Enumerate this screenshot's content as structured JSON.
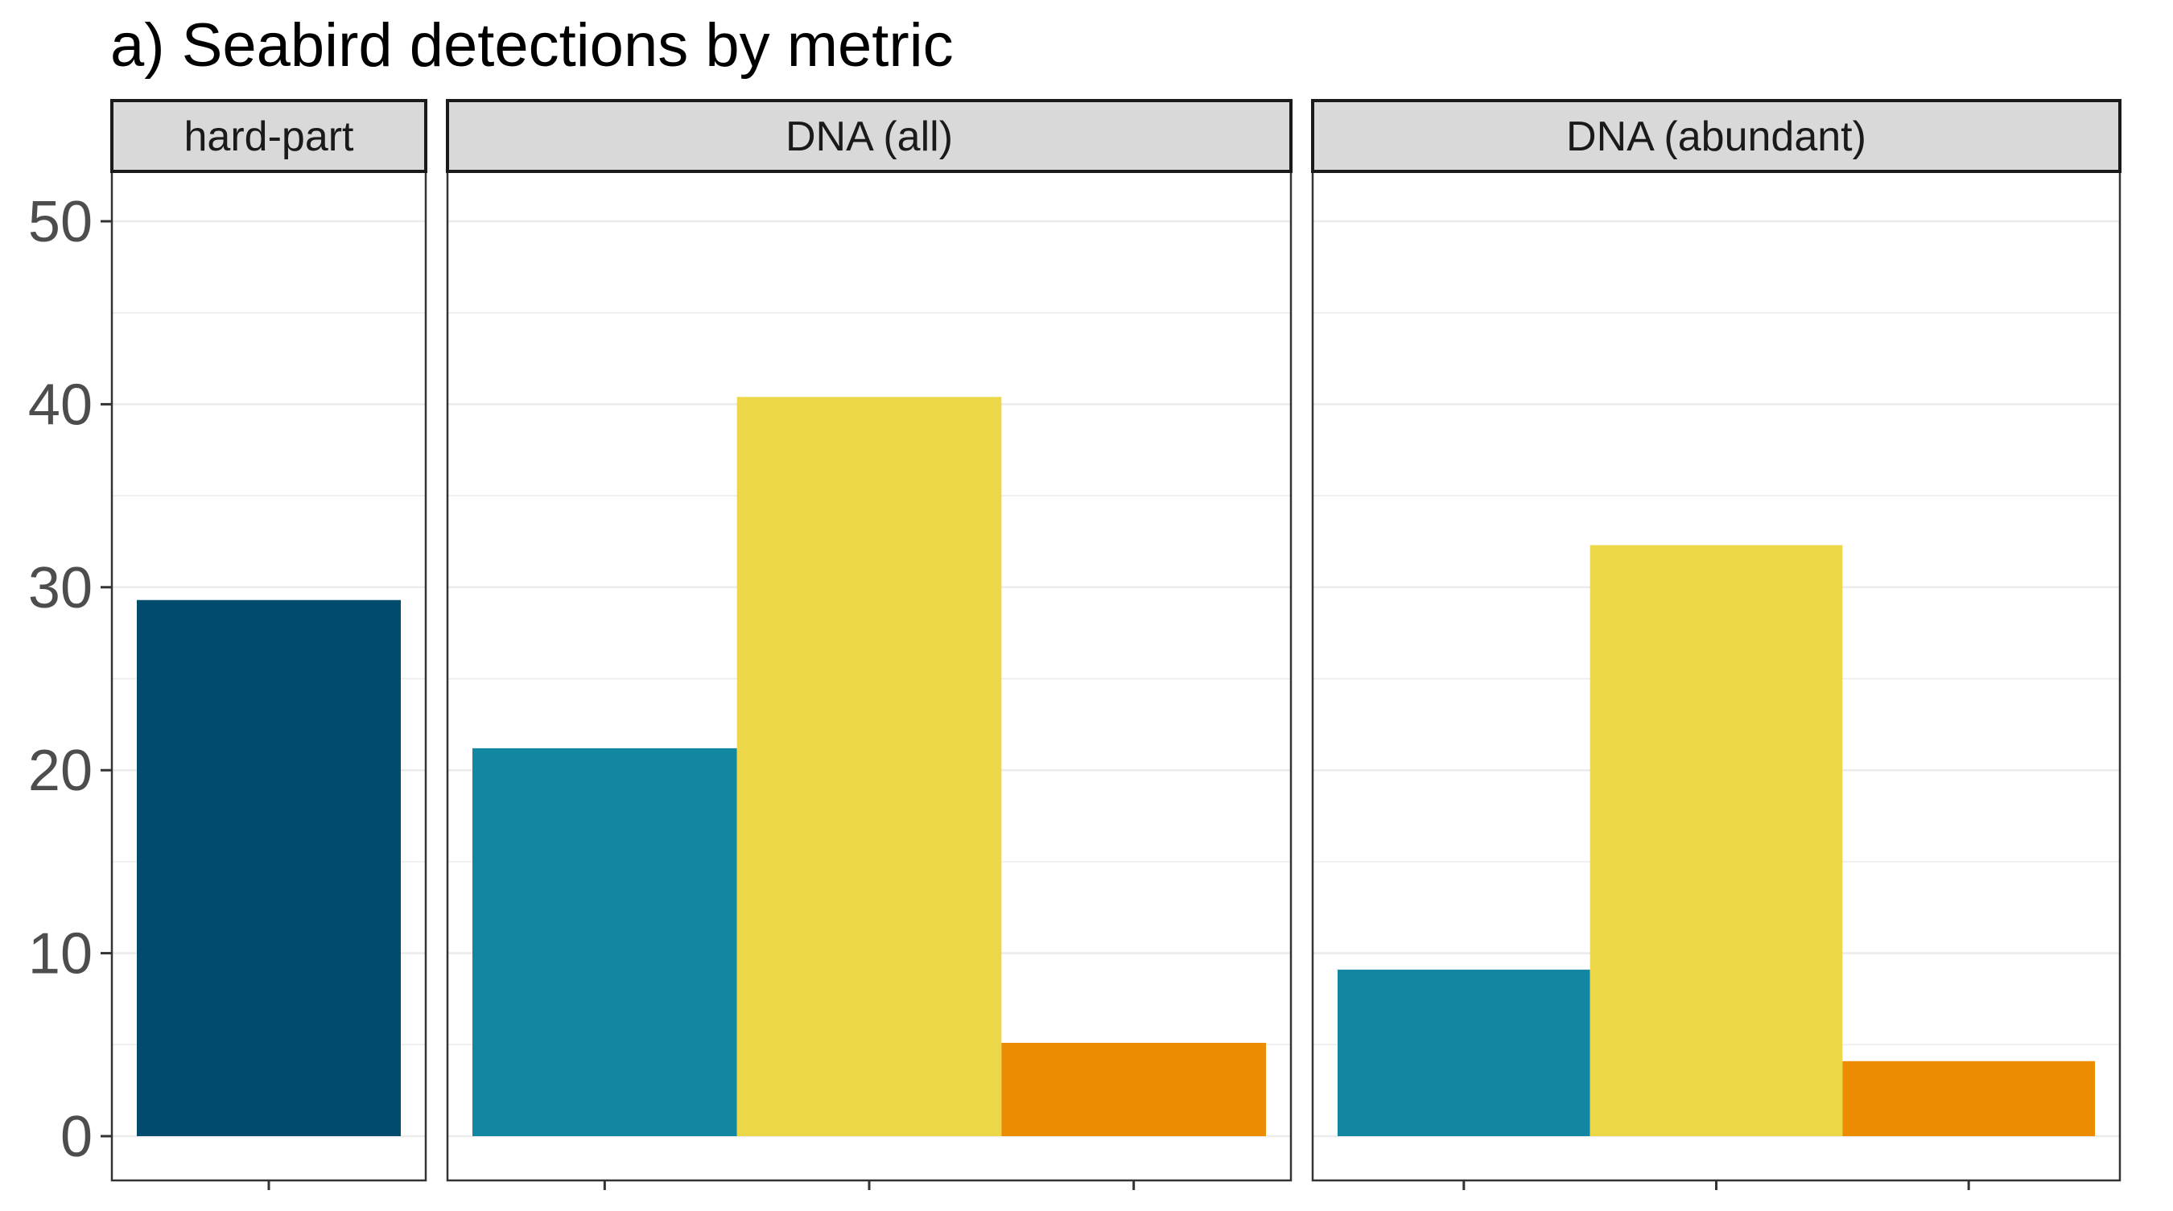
{
  "chart_data": {
    "type": "bar",
    "title": "a) Seabird detections by metric",
    "xlabel": "",
    "ylabel": "",
    "ylim": [
      0,
      52
    ],
    "yticks": [
      0,
      10,
      20,
      30,
      40,
      50
    ],
    "grid": true,
    "legend": "none",
    "panels": [
      {
        "label": "hard-part",
        "bars": [
          {
            "value": 29.3,
            "color": "#004B6E"
          }
        ]
      },
      {
        "label": "DNA (all)",
        "bars": [
          {
            "value": 21.2,
            "color": "#1187A1"
          },
          {
            "value": 40.4,
            "color": "#EBD748"
          },
          {
            "value": 5.1,
            "color": "#EC8C00"
          }
        ]
      },
      {
        "label": "DNA (abundant)",
        "bars": [
          {
            "value": 9.1,
            "color": "#1187A1"
          },
          {
            "value": 32.3,
            "color": "#EBD748"
          },
          {
            "value": 4.1,
            "color": "#EC8C00"
          }
        ]
      }
    ]
  }
}
